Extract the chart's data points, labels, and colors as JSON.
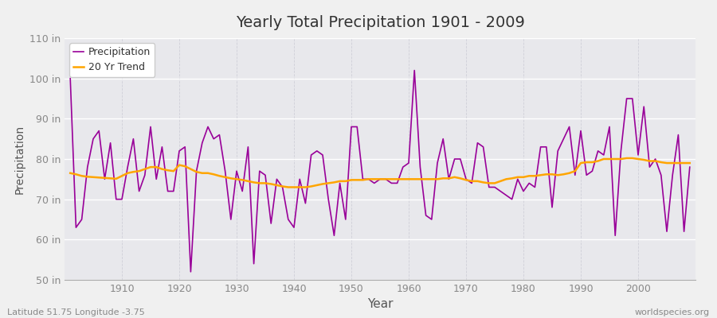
{
  "title": "Yearly Total Precipitation 1901 - 2009",
  "xlabel": "Year",
  "ylabel": "Precipitation",
  "footer_left": "Latitude 51.75 Longitude -3.75",
  "footer_right": "worldspecies.org",
  "ylim": [
    50,
    110
  ],
  "yticks": [
    50,
    60,
    70,
    80,
    90,
    100,
    110
  ],
  "ytick_labels": [
    "50 in",
    "60 in",
    "70 in",
    "80 in",
    "90 in",
    "100 in",
    "110 in"
  ],
  "xticks": [
    1910,
    1920,
    1930,
    1940,
    1950,
    1960,
    1970,
    1980,
    1990,
    2000
  ],
  "years": [
    1901,
    1902,
    1903,
    1904,
    1905,
    1906,
    1907,
    1908,
    1909,
    1910,
    1911,
    1912,
    1913,
    1914,
    1915,
    1916,
    1917,
    1918,
    1919,
    1920,
    1921,
    1922,
    1923,
    1924,
    1925,
    1926,
    1927,
    1928,
    1929,
    1930,
    1931,
    1932,
    1933,
    1934,
    1935,
    1936,
    1937,
    1938,
    1939,
    1940,
    1941,
    1942,
    1943,
    1944,
    1945,
    1946,
    1947,
    1948,
    1949,
    1950,
    1951,
    1952,
    1953,
    1954,
    1955,
    1956,
    1957,
    1958,
    1959,
    1960,
    1961,
    1962,
    1963,
    1964,
    1965,
    1966,
    1967,
    1968,
    1969,
    1970,
    1971,
    1972,
    1973,
    1974,
    1975,
    1976,
    1977,
    1978,
    1979,
    1980,
    1981,
    1982,
    1983,
    1984,
    1985,
    1986,
    1987,
    1988,
    1989,
    1990,
    1991,
    1992,
    1993,
    1994,
    1995,
    1996,
    1997,
    1998,
    1999,
    2000,
    2001,
    2002,
    2003,
    2004,
    2005,
    2006,
    2007,
    2008,
    2009
  ],
  "precipitation": [
    100,
    63,
    65,
    78,
    85,
    87,
    75,
    84,
    70,
    70,
    78,
    85,
    72,
    76,
    88,
    75,
    83,
    72,
    72,
    82,
    83,
    52,
    77,
    84,
    88,
    85,
    86,
    77,
    65,
    77,
    72,
    83,
    54,
    77,
    76,
    64,
    75,
    73,
    65,
    63,
    75,
    69,
    81,
    82,
    81,
    70,
    61,
    74,
    65,
    88,
    88,
    75,
    75,
    74,
    75,
    75,
    74,
    74,
    78,
    79,
    102,
    78,
    66,
    65,
    79,
    85,
    75,
    80,
    80,
    75,
    74,
    84,
    83,
    73,
    73,
    72,
    71,
    70,
    75,
    72,
    74,
    73,
    83,
    83,
    68,
    82,
    85,
    88,
    76,
    87,
    76,
    77,
    82,
    81,
    88,
    61,
    82,
    95,
    95,
    81,
    93,
    78,
    80,
    76,
    62,
    76,
    86,
    62,
    78
  ],
  "trend": [
    76.5,
    76.2,
    75.8,
    75.6,
    75.5,
    75.4,
    75.3,
    75.2,
    75.1,
    75.8,
    76.5,
    76.8,
    77.0,
    77.5,
    78.0,
    78.0,
    77.5,
    77.2,
    77.0,
    78.5,
    78.2,
    77.5,
    76.8,
    76.5,
    76.5,
    76.2,
    75.8,
    75.5,
    75.2,
    75.0,
    74.8,
    74.5,
    74.2,
    74.0,
    74.0,
    73.8,
    73.5,
    73.2,
    73.0,
    73.0,
    73.0,
    73.0,
    73.2,
    73.5,
    73.8,
    74.0,
    74.2,
    74.5,
    74.5,
    74.8,
    74.8,
    74.8,
    75.0,
    75.0,
    75.0,
    75.0,
    75.0,
    75.0,
    75.0,
    75.0,
    75.0,
    75.0,
    75.0,
    75.0,
    75.0,
    75.2,
    75.2,
    75.5,
    75.2,
    74.8,
    74.5,
    74.5,
    74.2,
    74.0,
    74.0,
    74.5,
    75.0,
    75.2,
    75.5,
    75.5,
    75.8,
    75.8,
    76.0,
    76.2,
    76.2,
    76.0,
    76.2,
    76.5,
    77.0,
    79.0,
    79.2,
    79.2,
    79.5,
    80.0,
    80.0,
    80.0,
    80.0,
    80.2,
    80.2,
    80.0,
    79.8,
    79.5,
    79.5,
    79.2,
    79.0,
    79.0,
    79.0,
    79.0,
    79.0
  ],
  "precip_color": "#990099",
  "trend_color": "#ffa500",
  "bg_color": "#f0f0f0",
  "plot_bg_color": "#e8e8ec",
  "grid_color_h": "#ffffff",
  "grid_color_v": "#d0d0d8",
  "title_color": "#333333",
  "axis_label_color": "#555555",
  "tick_label_color": "#888888",
  "footer_color": "#888888",
  "legend_label_color": "#333333",
  "legend_square_precip": "#990099",
  "legend_square_trend": "#ffa500"
}
